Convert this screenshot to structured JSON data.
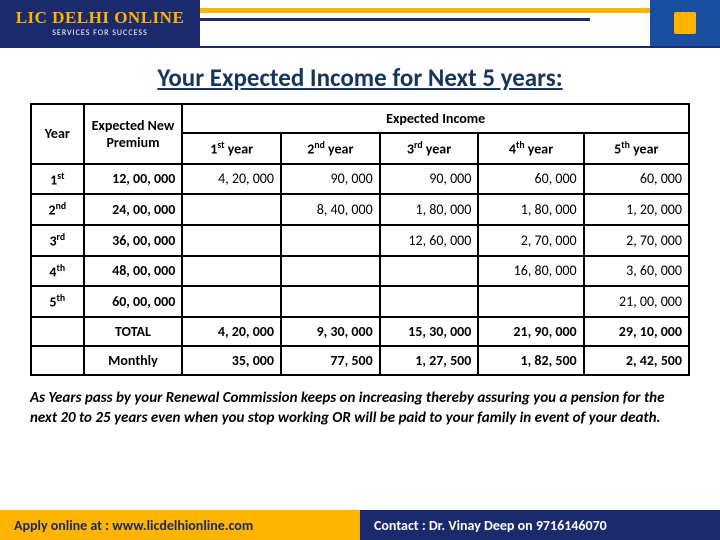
{
  "brand": {
    "title": "LIC DELHI ONLINE",
    "subtitle": "SERVICES FOR SUCCESS",
    "logo_text": "LIC"
  },
  "title": "Your Expected Income for Next 5 years:",
  "table": {
    "year_header": "Year",
    "premium_header": "Expected New Premium",
    "income_header": "Expected Income",
    "col_widths_pct": [
      8,
      15,
      15,
      15,
      15,
      16,
      16
    ],
    "year_cols": [
      {
        "ord": "1",
        "suf": "st",
        "tail": " year"
      },
      {
        "ord": "2",
        "suf": "nd",
        "tail": "  year"
      },
      {
        "ord": "3",
        "suf": "rd",
        "tail": " year"
      },
      {
        "ord": "4",
        "suf": "th",
        "tail": " year"
      },
      {
        "ord": "5",
        "suf": "th",
        "tail": " year"
      }
    ],
    "rows": [
      {
        "year_ord": "1",
        "year_suf": "st",
        "premium": "12, 00, 000",
        "cells": [
          "4, 20, 000",
          "90, 000",
          "90, 000",
          "60, 000",
          "60, 000"
        ]
      },
      {
        "year_ord": "2",
        "year_suf": "nd",
        "premium": "24, 00, 000",
        "cells": [
          "",
          "8, 40, 000",
          "1, 80, 000",
          "1, 80, 000",
          "1, 20, 000"
        ]
      },
      {
        "year_ord": "3",
        "year_suf": "rd",
        "premium": "36, 00, 000",
        "cells": [
          "",
          "",
          "12, 60, 000",
          "2, 70, 000",
          "2, 70, 000"
        ]
      },
      {
        "year_ord": "4",
        "year_suf": "th",
        "premium": "48, 00, 000",
        "cells": [
          "",
          "",
          "",
          "16, 80, 000",
          "3, 60, 000"
        ]
      },
      {
        "year_ord": "5",
        "year_suf": "th",
        "premium": "60, 00, 000",
        "cells": [
          "",
          "",
          "",
          "",
          "21, 00, 000"
        ]
      }
    ],
    "total_label": "TOTAL",
    "total_cells": [
      "4, 20, 000",
      "9, 30, 000",
      "15, 30, 000",
      "21, 90, 000",
      "29, 10, 000"
    ],
    "monthly_label": "Monthly",
    "monthly_cells": [
      "35, 000",
      "77, 500",
      "1, 27, 500",
      "1, 82, 500",
      "2, 42, 500"
    ]
  },
  "note": "As Years pass by your Renewal Commission keeps on increasing thereby assuring you a pension for the next 20 to 25 years even when you stop working OR will be paid to your family in event of your death.",
  "footer": {
    "left": "Apply online at : www.licdelhionline.com",
    "right": "Contact :  Dr. Vinay Deep on 9716146070"
  },
  "colors": {
    "navy": "#1a2a6c",
    "gold": "#ffb400",
    "title": "#17365d"
  }
}
